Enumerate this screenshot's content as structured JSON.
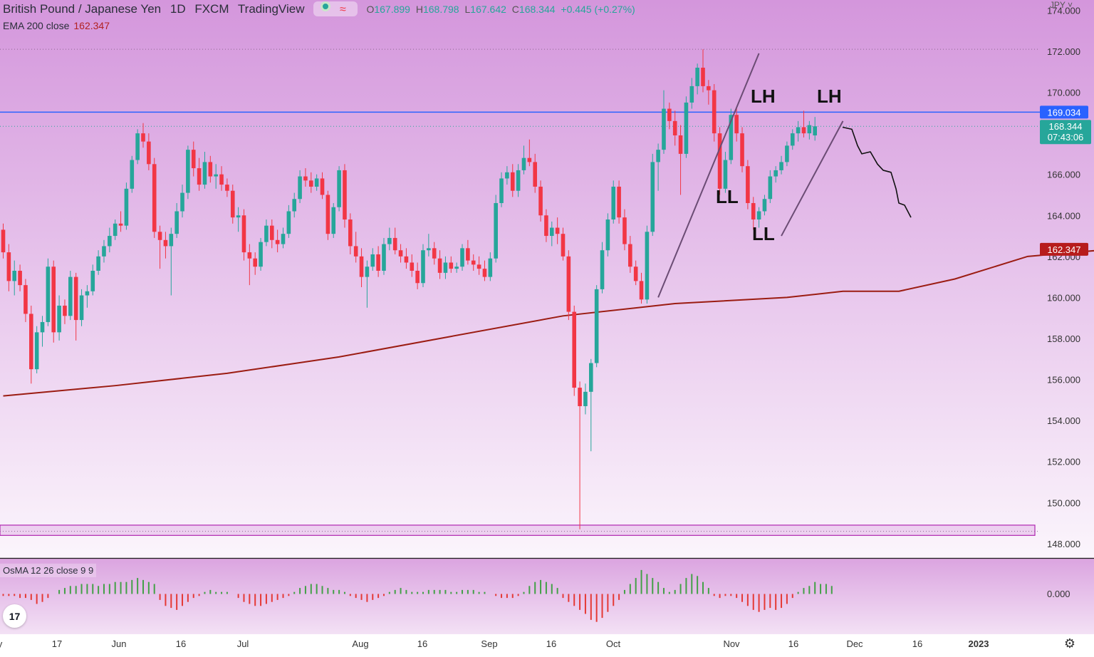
{
  "header": {
    "symbol": "British Pound / Japanese Yen",
    "interval": "1D",
    "exchange": "FXCM",
    "platform": "TradingView",
    "ohlc": {
      "o_label": "O",
      "o": "167.899",
      "h_label": "H",
      "h": "168.798",
      "l_label": "L",
      "l": "167.642",
      "c_label": "C",
      "c": "168.344",
      "change": "+0.445 (+0.27%)"
    },
    "status_icon": "market-open-dot",
    "wave_icon": "≈",
    "currency": "JPY"
  },
  "ema": {
    "label": "EMA 200 close",
    "value": "162.347"
  },
  "osma": {
    "label": "OsMA 12 26 close 9 9"
  },
  "logo_text": "17",
  "settings_icon": "⚙",
  "colors": {
    "background_top": "#d496dc",
    "background_bottom": "#fbf5fc",
    "up": "#26a69a",
    "down": "#f23645",
    "ema": "#9b1c12",
    "hline": "#2962ff",
    "price_tag": "#26a69a",
    "ema_tag": "#b71c1c",
    "trendline": "#6b4c74",
    "zone": "#b026b0"
  },
  "chart_data": {
    "type": "candlestick",
    "ylim": [
      147.3,
      174.5
    ],
    "ytick_labels": [
      "174.000",
      "172.000",
      "170.000",
      "168.000",
      "166.000",
      "164.000",
      "162.000",
      "160.000",
      "158.000",
      "156.000",
      "154.000",
      "152.000",
      "150.000",
      "148.000"
    ],
    "xtick_labels": [
      "y",
      "17",
      "Jun",
      "16",
      "Jul",
      "Aug",
      "16",
      "Sep",
      "16",
      "Oct",
      "Nov",
      "16",
      "Dec",
      "16",
      "2023"
    ],
    "horizontal_line": {
      "value": 169.034,
      "label": "169.034"
    },
    "last_price": {
      "value": 168.344,
      "label": "168.344",
      "countdown": "07:43:06"
    },
    "ema_tag": {
      "value": 162.347,
      "label": "162.347"
    },
    "zone": {
      "from": 148.4,
      "to": 148.9
    },
    "annotations": [
      "LH",
      "LH",
      "LL",
      "LL"
    ],
    "osma_zero_label": "0.000",
    "ema200": [
      {
        "day": 0,
        "value": 155.2
      },
      {
        "day": 20,
        "value": 155.7
      },
      {
        "day": 40,
        "value": 156.3
      },
      {
        "day": 60,
        "value": 157.1
      },
      {
        "day": 80,
        "value": 158.1
      },
      {
        "day": 100,
        "value": 159.1
      },
      {
        "day": 120,
        "value": 159.7
      },
      {
        "day": 140,
        "value": 160.0
      },
      {
        "day": 150,
        "value": 160.3
      },
      {
        "day": 160,
        "value": 160.3
      },
      {
        "day": 170,
        "value": 160.9
      },
      {
        "day": 183,
        "value": 162.0
      },
      {
        "day": 200,
        "value": 162.4
      }
    ],
    "candles": [
      {
        "o": 163.3,
        "h": 163.6,
        "l": 161.9,
        "c": 162.2
      },
      {
        "o": 162.2,
        "h": 162.6,
        "l": 160.3,
        "c": 160.8
      },
      {
        "o": 160.8,
        "h": 161.8,
        "l": 160.1,
        "c": 161.3
      },
      {
        "o": 161.3,
        "h": 161.6,
        "l": 160.3,
        "c": 160.6
      },
      {
        "o": 160.6,
        "h": 160.9,
        "l": 158.8,
        "c": 159.2
      },
      {
        "o": 159.2,
        "h": 159.6,
        "l": 155.8,
        "c": 156.5
      },
      {
        "o": 156.5,
        "h": 158.6,
        "l": 156.3,
        "c": 158.3
      },
      {
        "o": 158.3,
        "h": 159.1,
        "l": 157.6,
        "c": 158.8
      },
      {
        "o": 158.8,
        "h": 161.9,
        "l": 158.6,
        "c": 161.5
      },
      {
        "o": 161.5,
        "h": 161.8,
        "l": 157.8,
        "c": 158.3
      },
      {
        "o": 158.3,
        "h": 160.1,
        "l": 157.9,
        "c": 159.6
      },
      {
        "o": 159.6,
        "h": 159.9,
        "l": 158.7,
        "c": 159.1
      },
      {
        "o": 159.1,
        "h": 161.3,
        "l": 158.9,
        "c": 161.0
      },
      {
        "o": 161.0,
        "h": 161.2,
        "l": 157.9,
        "c": 158.9
      },
      {
        "o": 158.9,
        "h": 160.4,
        "l": 158.6,
        "c": 160.1
      },
      {
        "o": 160.1,
        "h": 160.6,
        "l": 159.5,
        "c": 160.3
      },
      {
        "o": 160.3,
        "h": 161.6,
        "l": 160.1,
        "c": 161.3
      },
      {
        "o": 161.3,
        "h": 162.3,
        "l": 161.1,
        "c": 162.0
      },
      {
        "o": 162.0,
        "h": 162.8,
        "l": 161.7,
        "c": 162.5
      },
      {
        "o": 162.5,
        "h": 163.4,
        "l": 162.2,
        "c": 163.0
      },
      {
        "o": 163.0,
        "h": 163.8,
        "l": 162.8,
        "c": 163.6
      },
      {
        "o": 163.6,
        "h": 164.2,
        "l": 163.2,
        "c": 163.5
      },
      {
        "o": 163.5,
        "h": 165.6,
        "l": 163.3,
        "c": 165.3
      },
      {
        "o": 165.3,
        "h": 166.9,
        "l": 165.1,
        "c": 166.7
      },
      {
        "o": 166.7,
        "h": 168.2,
        "l": 166.5,
        "c": 168.0
      },
      {
        "o": 168.0,
        "h": 168.5,
        "l": 167.3,
        "c": 167.6
      },
      {
        "o": 167.6,
        "h": 168.0,
        "l": 166.2,
        "c": 166.5
      },
      {
        "o": 166.5,
        "h": 166.8,
        "l": 162.9,
        "c": 163.2
      },
      {
        "o": 163.2,
        "h": 163.5,
        "l": 161.4,
        "c": 162.8
      },
      {
        "o": 162.8,
        "h": 163.2,
        "l": 161.9,
        "c": 162.5
      },
      {
        "o": 162.5,
        "h": 163.4,
        "l": 160.1,
        "c": 163.1
      },
      {
        "o": 163.1,
        "h": 164.6,
        "l": 162.9,
        "c": 164.2
      },
      {
        "o": 164.2,
        "h": 165.5,
        "l": 163.9,
        "c": 165.1
      },
      {
        "o": 165.1,
        "h": 167.4,
        "l": 164.8,
        "c": 167.2
      },
      {
        "o": 167.2,
        "h": 167.6,
        "l": 165.9,
        "c": 166.3
      },
      {
        "o": 166.3,
        "h": 166.8,
        "l": 165.2,
        "c": 165.5
      },
      {
        "o": 165.5,
        "h": 167.1,
        "l": 165.3,
        "c": 166.6
      },
      {
        "o": 166.6,
        "h": 166.9,
        "l": 165.6,
        "c": 165.9
      },
      {
        "o": 165.9,
        "h": 166.5,
        "l": 165.3,
        "c": 166.0
      },
      {
        "o": 166.0,
        "h": 166.4,
        "l": 165.2,
        "c": 165.5
      },
      {
        "o": 165.5,
        "h": 165.8,
        "l": 164.9,
        "c": 165.2
      },
      {
        "o": 165.2,
        "h": 165.5,
        "l": 163.6,
        "c": 163.9
      },
      {
        "o": 163.9,
        "h": 164.4,
        "l": 163.2,
        "c": 164.0
      },
      {
        "o": 164.0,
        "h": 164.3,
        "l": 161.8,
        "c": 162.2
      },
      {
        "o": 162.2,
        "h": 162.6,
        "l": 160.6,
        "c": 161.9
      },
      {
        "o": 161.9,
        "h": 162.2,
        "l": 161.1,
        "c": 161.5
      },
      {
        "o": 161.5,
        "h": 162.9,
        "l": 161.3,
        "c": 162.7
      },
      {
        "o": 162.7,
        "h": 163.8,
        "l": 162.5,
        "c": 163.5
      },
      {
        "o": 163.5,
        "h": 163.8,
        "l": 162.4,
        "c": 162.8
      },
      {
        "o": 162.8,
        "h": 163.3,
        "l": 162.2,
        "c": 162.6
      },
      {
        "o": 162.6,
        "h": 163.4,
        "l": 162.4,
        "c": 163.1
      },
      {
        "o": 163.1,
        "h": 164.5,
        "l": 162.9,
        "c": 164.2
      },
      {
        "o": 164.2,
        "h": 165.1,
        "l": 163.9,
        "c": 164.8
      },
      {
        "o": 164.8,
        "h": 166.2,
        "l": 164.6,
        "c": 165.9
      },
      {
        "o": 165.9,
        "h": 166.3,
        "l": 165.4,
        "c": 165.7
      },
      {
        "o": 165.7,
        "h": 166.1,
        "l": 165.1,
        "c": 165.4
      },
      {
        "o": 165.4,
        "h": 166.0,
        "l": 165.2,
        "c": 165.8
      },
      {
        "o": 165.8,
        "h": 166.1,
        "l": 164.8,
        "c": 165.0
      },
      {
        "o": 165.0,
        "h": 165.2,
        "l": 162.8,
        "c": 163.1
      },
      {
        "o": 163.1,
        "h": 164.6,
        "l": 162.9,
        "c": 164.4
      },
      {
        "o": 164.4,
        "h": 166.4,
        "l": 164.2,
        "c": 166.2
      },
      {
        "o": 166.2,
        "h": 166.5,
        "l": 163.4,
        "c": 163.8
      },
      {
        "o": 163.8,
        "h": 164.1,
        "l": 162.1,
        "c": 162.5
      },
      {
        "o": 162.5,
        "h": 163.2,
        "l": 161.7,
        "c": 162.0
      },
      {
        "o": 162.0,
        "h": 162.4,
        "l": 160.5,
        "c": 161.0
      },
      {
        "o": 161.0,
        "h": 161.8,
        "l": 159.5,
        "c": 161.5
      },
      {
        "o": 161.5,
        "h": 162.4,
        "l": 161.3,
        "c": 162.1
      },
      {
        "o": 162.1,
        "h": 162.5,
        "l": 161.0,
        "c": 161.3
      },
      {
        "o": 161.3,
        "h": 162.9,
        "l": 161.1,
        "c": 162.6
      },
      {
        "o": 162.6,
        "h": 163.4,
        "l": 162.3,
        "c": 162.9
      },
      {
        "o": 162.9,
        "h": 163.4,
        "l": 162.1,
        "c": 162.3
      },
      {
        "o": 162.3,
        "h": 162.6,
        "l": 161.7,
        "c": 162.0
      },
      {
        "o": 162.0,
        "h": 162.4,
        "l": 161.4,
        "c": 161.7
      },
      {
        "o": 161.7,
        "h": 162.1,
        "l": 161.0,
        "c": 161.3
      },
      {
        "o": 161.3,
        "h": 161.7,
        "l": 160.4,
        "c": 160.7
      },
      {
        "o": 160.7,
        "h": 162.6,
        "l": 160.5,
        "c": 162.3
      },
      {
        "o": 162.3,
        "h": 163.1,
        "l": 162.0,
        "c": 162.4
      },
      {
        "o": 162.4,
        "h": 162.7,
        "l": 161.6,
        "c": 161.9
      },
      {
        "o": 161.9,
        "h": 162.3,
        "l": 160.9,
        "c": 161.2
      },
      {
        "o": 161.2,
        "h": 162.0,
        "l": 160.9,
        "c": 161.7
      },
      {
        "o": 161.7,
        "h": 162.0,
        "l": 161.2,
        "c": 161.4
      },
      {
        "o": 161.4,
        "h": 161.7,
        "l": 161.2,
        "c": 161.5
      },
      {
        "o": 161.5,
        "h": 162.6,
        "l": 161.3,
        "c": 162.4
      },
      {
        "o": 162.4,
        "h": 162.8,
        "l": 161.6,
        "c": 161.8
      },
      {
        "o": 161.8,
        "h": 162.1,
        "l": 161.3,
        "c": 161.6
      },
      {
        "o": 161.6,
        "h": 162.0,
        "l": 161.1,
        "c": 161.4
      },
      {
        "o": 161.4,
        "h": 161.8,
        "l": 160.8,
        "c": 161.0
      },
      {
        "o": 161.0,
        "h": 162.2,
        "l": 160.8,
        "c": 161.9
      },
      {
        "o": 161.9,
        "h": 165.0,
        "l": 161.7,
        "c": 164.6
      },
      {
        "o": 164.6,
        "h": 166.1,
        "l": 164.4,
        "c": 165.8
      },
      {
        "o": 165.8,
        "h": 166.4,
        "l": 165.5,
        "c": 166.1
      },
      {
        "o": 166.1,
        "h": 166.5,
        "l": 164.9,
        "c": 165.2
      },
      {
        "o": 165.2,
        "h": 166.5,
        "l": 164.9,
        "c": 166.2
      },
      {
        "o": 166.2,
        "h": 167.4,
        "l": 166.0,
        "c": 166.8
      },
      {
        "o": 166.8,
        "h": 167.7,
        "l": 166.4,
        "c": 166.6
      },
      {
        "o": 166.6,
        "h": 167.0,
        "l": 165.1,
        "c": 165.4
      },
      {
        "o": 165.4,
        "h": 165.7,
        "l": 163.7,
        "c": 164.0
      },
      {
        "o": 164.0,
        "h": 164.3,
        "l": 162.7,
        "c": 163.0
      },
      {
        "o": 163.0,
        "h": 163.7,
        "l": 162.5,
        "c": 163.4
      },
      {
        "o": 163.4,
        "h": 163.9,
        "l": 162.6,
        "c": 163.1
      },
      {
        "o": 163.1,
        "h": 163.4,
        "l": 161.8,
        "c": 162.0
      },
      {
        "o": 162.0,
        "h": 162.3,
        "l": 158.9,
        "c": 159.3
      },
      {
        "o": 159.3,
        "h": 159.6,
        "l": 155.2,
        "c": 155.6
      },
      {
        "o": 155.6,
        "h": 155.9,
        "l": 148.7,
        "c": 154.7
      },
      {
        "o": 154.7,
        "h": 155.8,
        "l": 154.3,
        "c": 155.4
      },
      {
        "o": 155.4,
        "h": 157.0,
        "l": 152.5,
        "c": 156.8
      },
      {
        "o": 156.8,
        "h": 160.6,
        "l": 156.6,
        "c": 160.4
      },
      {
        "o": 160.4,
        "h": 162.7,
        "l": 160.2,
        "c": 162.3
      },
      {
        "o": 162.3,
        "h": 164.1,
        "l": 162.0,
        "c": 163.8
      },
      {
        "o": 163.8,
        "h": 165.7,
        "l": 163.6,
        "c": 165.4
      },
      {
        "o": 165.4,
        "h": 165.7,
        "l": 163.6,
        "c": 163.9
      },
      {
        "o": 163.9,
        "h": 164.3,
        "l": 162.3,
        "c": 162.6
      },
      {
        "o": 162.6,
        "h": 163.0,
        "l": 161.2,
        "c": 161.5
      },
      {
        "o": 161.5,
        "h": 161.8,
        "l": 160.6,
        "c": 160.8
      },
      {
        "o": 160.8,
        "h": 161.2,
        "l": 159.7,
        "c": 159.9
      },
      {
        "o": 159.9,
        "h": 163.5,
        "l": 159.7,
        "c": 163.2
      },
      {
        "o": 163.2,
        "h": 167.0,
        "l": 163.0,
        "c": 166.6
      },
      {
        "o": 166.6,
        "h": 167.5,
        "l": 165.2,
        "c": 167.2
      },
      {
        "o": 167.2,
        "h": 170.1,
        "l": 167.0,
        "c": 169.2
      },
      {
        "o": 169.2,
        "h": 169.5,
        "l": 168.2,
        "c": 168.6
      },
      {
        "o": 168.6,
        "h": 169.1,
        "l": 167.4,
        "c": 167.9
      },
      {
        "o": 167.9,
        "h": 168.4,
        "l": 165.0,
        "c": 167.0
      },
      {
        "o": 167.0,
        "h": 169.8,
        "l": 166.8,
        "c": 169.5
      },
      {
        "o": 169.5,
        "h": 170.7,
        "l": 169.2,
        "c": 170.3
      },
      {
        "o": 170.3,
        "h": 171.4,
        "l": 169.9,
        "c": 171.2
      },
      {
        "o": 171.2,
        "h": 172.1,
        "l": 170.0,
        "c": 170.3
      },
      {
        "o": 170.3,
        "h": 170.6,
        "l": 169.4,
        "c": 170.1
      },
      {
        "o": 170.1,
        "h": 170.4,
        "l": 167.6,
        "c": 168.0
      },
      {
        "o": 168.0,
        "h": 168.3,
        "l": 165.0,
        "c": 165.3
      },
      {
        "o": 165.3,
        "h": 167.1,
        "l": 165.1,
        "c": 166.7
      },
      {
        "o": 166.7,
        "h": 169.2,
        "l": 166.5,
        "c": 168.9
      },
      {
        "o": 168.9,
        "h": 169.3,
        "l": 167.6,
        "c": 168.0
      },
      {
        "o": 168.0,
        "h": 168.3,
        "l": 166.1,
        "c": 166.4
      },
      {
        "o": 166.4,
        "h": 166.7,
        "l": 164.3,
        "c": 164.6
      },
      {
        "o": 164.6,
        "h": 164.9,
        "l": 163.3,
        "c": 163.8
      },
      {
        "o": 163.8,
        "h": 164.4,
        "l": 163.4,
        "c": 164.2
      },
      {
        "o": 164.2,
        "h": 165.0,
        "l": 164.0,
        "c": 164.8
      },
      {
        "o": 164.8,
        "h": 166.2,
        "l": 164.6,
        "c": 165.9
      },
      {
        "o": 165.9,
        "h": 166.4,
        "l": 165.6,
        "c": 166.2
      },
      {
        "o": 166.2,
        "h": 166.9,
        "l": 166.0,
        "c": 166.6
      },
      {
        "o": 166.6,
        "h": 167.6,
        "l": 166.4,
        "c": 167.4
      },
      {
        "o": 167.4,
        "h": 168.2,
        "l": 167.2,
        "c": 168.0
      },
      {
        "o": 168.0,
        "h": 168.6,
        "l": 167.6,
        "c": 168.3
      },
      {
        "o": 168.3,
        "h": 169.1,
        "l": 167.8,
        "c": 168.0
      },
      {
        "o": 168.0,
        "h": 168.6,
        "l": 167.7,
        "c": 168.4
      },
      {
        "o": 167.899,
        "h": 168.798,
        "l": 167.642,
        "c": 168.344
      }
    ],
    "osma": [
      -0.1,
      -0.1,
      -0.1,
      -0.2,
      -0.2,
      -0.3,
      -0.5,
      -0.4,
      -0.2,
      0.0,
      0.2,
      0.3,
      0.4,
      0.4,
      0.5,
      0.5,
      0.5,
      0.4,
      0.5,
      0.5,
      0.6,
      0.6,
      0.6,
      0.7,
      0.8,
      0.7,
      0.6,
      0.5,
      -0.3,
      -0.6,
      -0.7,
      -0.8,
      -0.6,
      -0.4,
      -0.2,
      -0.1,
      0.1,
      0.2,
      0.1,
      0.1,
      0.1,
      0.0,
      -0.2,
      -0.4,
      -0.5,
      -0.6,
      -0.6,
      -0.5,
      -0.4,
      -0.3,
      -0.2,
      -0.1,
      0.1,
      0.3,
      0.4,
      0.5,
      0.5,
      0.4,
      0.3,
      0.2,
      0.2,
      0.1,
      -0.1,
      -0.2,
      -0.3,
      -0.4,
      -0.3,
      -0.2,
      -0.1,
      0.1,
      0.2,
      0.3,
      0.2,
      0.1,
      0.1,
      0.1,
      0.2,
      0.2,
      0.2,
      0.2,
      0.1,
      0.1,
      0.2,
      0.2,
      0.2,
      0.1,
      0.1,
      0.0,
      -0.1,
      -0.2,
      -0.2,
      -0.2,
      -0.1,
      0.1,
      0.4,
      0.6,
      0.7,
      0.6,
      0.5,
      0.3,
      -0.2,
      -0.4,
      -0.6,
      -0.8,
      -1.0,
      -1.3,
      -1.4,
      -1.2,
      -0.9,
      -0.6,
      -0.3,
      0.2,
      0.5,
      0.8,
      1.2,
      1.0,
      0.8,
      0.6,
      0.3,
      0.1,
      0.2,
      0.5,
      0.8,
      1.0,
      0.9,
      0.6,
      0.3,
      -0.1,
      -0.2,
      -0.1,
      -0.1,
      -0.2,
      -0.4,
      -0.6,
      -0.8,
      -0.9,
      -0.8,
      -0.7,
      -0.8,
      -0.7,
      -0.5,
      -0.2,
      0.1,
      0.3,
      0.4,
      0.6,
      0.5,
      0.5,
      0.4
    ]
  }
}
